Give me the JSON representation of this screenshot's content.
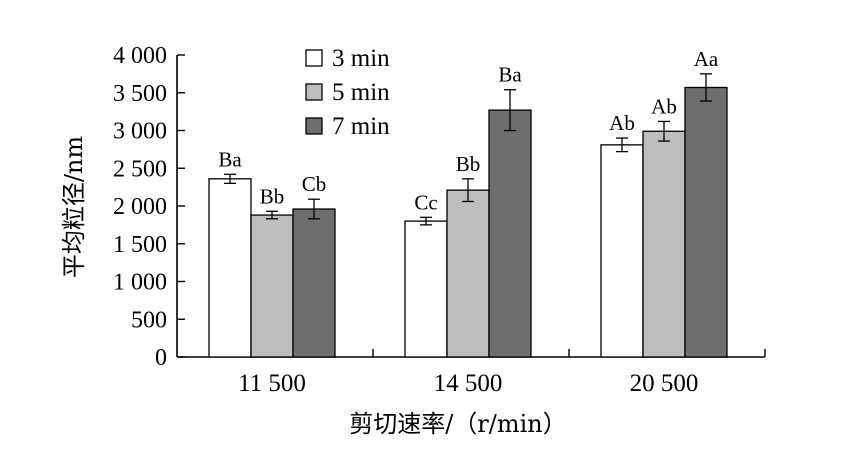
{
  "chart_data": {
    "type": "bar",
    "xlabel": "剪切速率/（r/min）",
    "ylabel": "平均粒径/nm",
    "ylim": [
      0,
      4000
    ],
    "yticks": [
      0,
      500,
      1000,
      1500,
      2000,
      2500,
      3000,
      3500,
      4000
    ],
    "ytick_labels": [
      "0",
      "500",
      "1 000",
      "1 500",
      "2 000",
      "2 500",
      "3 000",
      "3 500",
      "4 000"
    ],
    "categories": [
      "11 500",
      "14 500",
      "20 500"
    ],
    "legend_position": "top-left",
    "grid": false,
    "series": [
      {
        "name": "3 min",
        "color": "#ffffff",
        "values": [
          2360,
          1800,
          2810
        ],
        "errors": [
          60,
          50,
          90
        ],
        "labels": [
          "Ba",
          "Cc",
          "Ab"
        ]
      },
      {
        "name": "5 min",
        "color": "#bdbdbd",
        "values": [
          1880,
          2210,
          2990
        ],
        "errors": [
          50,
          150,
          130
        ],
        "labels": [
          "Bb",
          "Bb",
          "Ab"
        ]
      },
      {
        "name": "7 min",
        "color": "#6e6e6e",
        "values": [
          1960,
          3270,
          3570
        ],
        "errors": [
          130,
          270,
          180
        ],
        "labels": [
          "Cb",
          "Ba",
          "Aa"
        ]
      }
    ]
  }
}
